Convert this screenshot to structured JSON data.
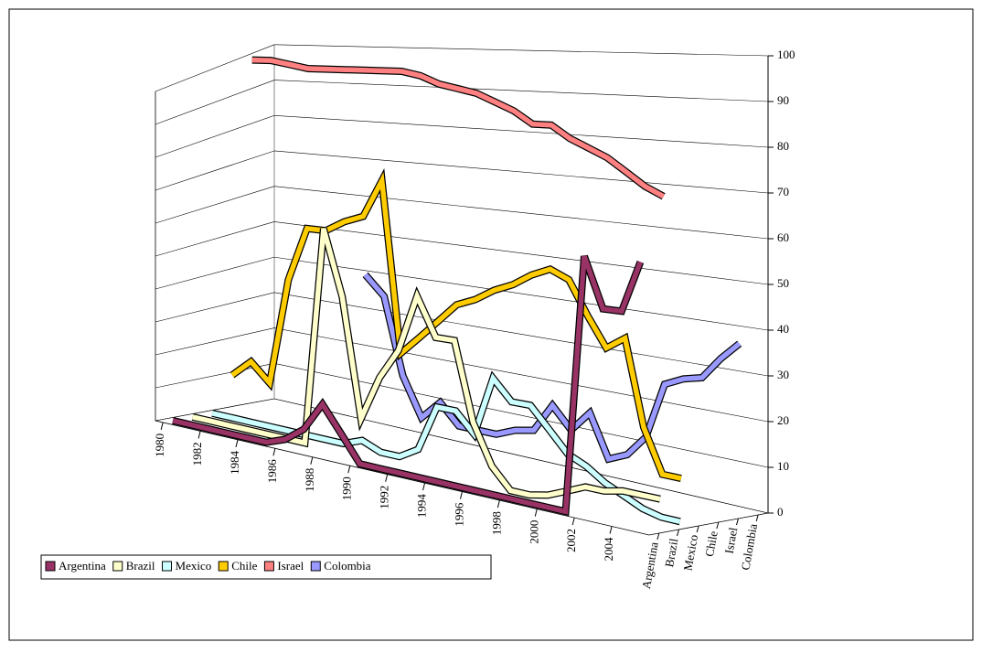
{
  "chart_data": {
    "type": "line",
    "x": [
      1980,
      1981,
      1982,
      1983,
      1984,
      1985,
      1986,
      1987,
      1988,
      1989,
      1990,
      1991,
      1992,
      1993,
      1994,
      1995,
      1996,
      1997,
      1998,
      1999,
      2000,
      2001,
      2002,
      2003,
      2004,
      2005
    ],
    "xlim": [
      1979.6,
      2006
    ],
    "xticks": [
      1980,
      1982,
      1984,
      1986,
      1988,
      1990,
      1992,
      1994,
      1996,
      1998,
      2000,
      2002,
      2004
    ],
    "ylim": [
      0,
      100
    ],
    "yticks": [
      0,
      10,
      20,
      30,
      40,
      50,
      60,
      70,
      80,
      90,
      100
    ],
    "grid": true,
    "legend": "bottom-left",
    "series": [
      {
        "name": "Argentina",
        "color": "#993366",
        "values": [
          0,
          0,
          0,
          0,
          0,
          0,
          2,
          6,
          14,
          7,
          0,
          0,
          0,
          0,
          0,
          0,
          0,
          0,
          0,
          0,
          0,
          0,
          62,
          50,
          50,
          62
        ]
      },
      {
        "name": "Brazil",
        "color": "#ffffcc",
        "values": [
          0,
          0,
          0,
          0,
          0,
          0,
          0,
          60,
          42,
          10,
          22,
          30,
          45,
          35,
          35,
          15,
          5,
          0,
          0,
          1,
          3,
          5,
          5,
          6,
          6,
          6
        ]
      },
      {
        "name": "Mexico",
        "color": "#ccffff",
        "values": [
          0,
          0,
          0,
          0,
          0,
          0,
          0,
          0,
          2,
          0,
          0,
          3,
          15,
          15,
          10,
          25,
          20,
          20,
          15,
          10,
          8,
          5,
          3,
          1,
          0,
          0
        ]
      },
      {
        "name": "Chile",
        "color": "#ffcc00",
        "values": [
          10,
          15,
          10,
          40,
          55,
          55,
          58,
          60,
          70,
          25,
          30,
          35,
          40,
          42,
          45,
          47,
          50,
          52,
          50,
          42,
          35,
          38,
          18,
          8,
          8,
          null
        ]
      },
      {
        "name": "Israel",
        "color": "#ff8080",
        "values": [
          99,
          99,
          98,
          97,
          97,
          97,
          97,
          97,
          97,
          96,
          94,
          93,
          92,
          90,
          88,
          85,
          85,
          82,
          80,
          78,
          75,
          72,
          70,
          null,
          null,
          null
        ]
      },
      {
        "name": "Colombia",
        "color": "#9999ff",
        "values": [
          null,
          null,
          null,
          null,
          null,
          40,
          35,
          15,
          5,
          10,
          5,
          5,
          5,
          7,
          8,
          15,
          10,
          15,
          5,
          7,
          12,
          25,
          27,
          28,
          33,
          37
        ]
      }
    ]
  }
}
